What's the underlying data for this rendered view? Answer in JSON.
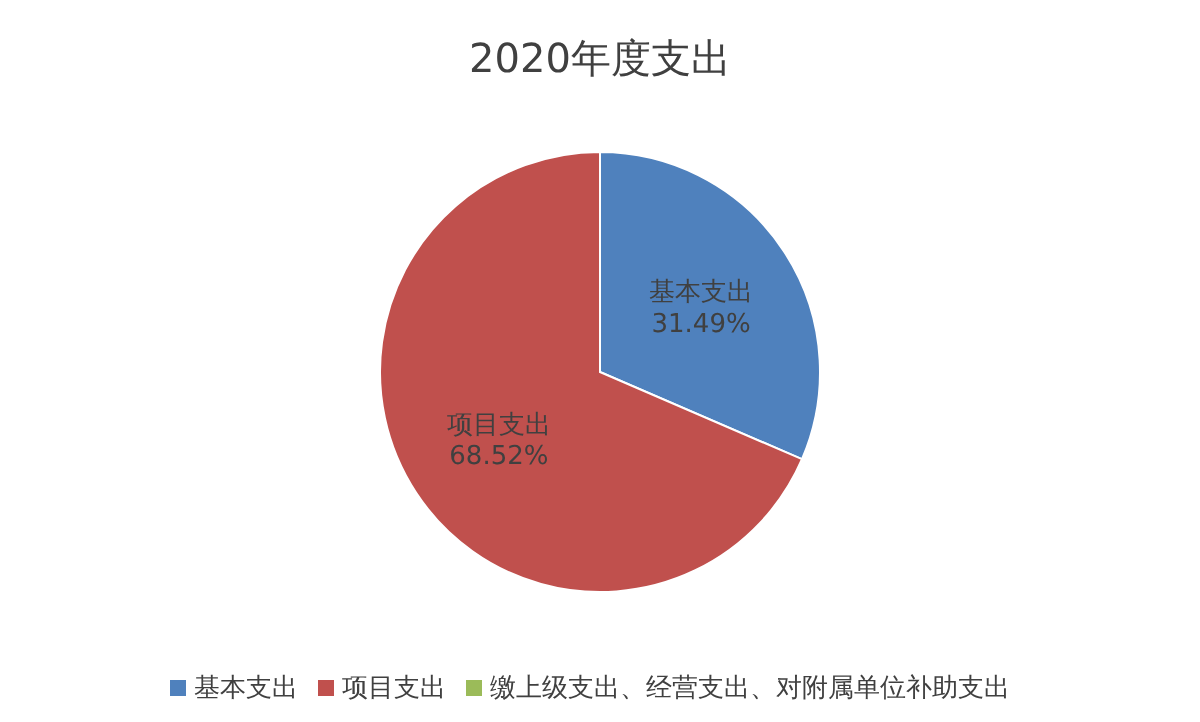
{
  "chart_data": {
    "type": "pie",
    "title": "2020年度支出",
    "categories": [
      "基本支出",
      "项目支出",
      "缴上级支出、经营支出、对附属单位补助支出"
    ],
    "values": [
      31.49,
      68.52,
      0
    ],
    "colors": [
      "#4f81bd",
      "#c0504d",
      "#9bbb59"
    ],
    "value_labels": [
      "31.49%",
      "68.52%",
      null
    ],
    "legend": "bottom"
  }
}
